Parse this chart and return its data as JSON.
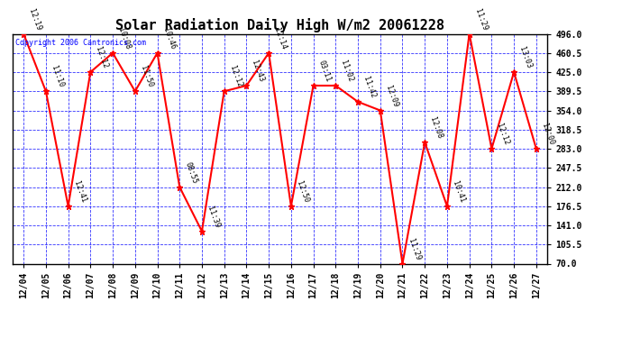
{
  "title": "Solar Radiation Daily High W/m2 20061228",
  "copyright": "Copyright 2006 Cantronics.com",
  "dates": [
    "12/04",
    "12/05",
    "12/06",
    "12/07",
    "12/08",
    "12/09",
    "12/10",
    "12/11",
    "12/12",
    "12/13",
    "12/14",
    "12/15",
    "12/16",
    "12/17",
    "12/18",
    "12/19",
    "12/20",
    "12/21",
    "12/22",
    "12/23",
    "12/24",
    "12/25",
    "12/26",
    "12/27"
  ],
  "values": [
    496.0,
    389.5,
    176.5,
    425.0,
    460.5,
    389.5,
    460.5,
    212.0,
    130.0,
    389.5,
    400.0,
    460.5,
    176.5,
    400.0,
    400.0,
    370.0,
    354.0,
    70.0,
    295.0,
    176.5,
    496.0,
    283.0,
    425.0,
    283.0
  ],
  "annotations": [
    "12:19",
    "11:10",
    "12:41",
    "12:12",
    "10:08",
    "11:50",
    "10:46",
    "08:55",
    "11:39",
    "12:12",
    "12:43",
    "12:14",
    "12:50",
    "03:11",
    "11:02",
    "11:42",
    "12:09",
    "11:29",
    "12:08",
    "10:41",
    "11:29",
    "12:12",
    "13:03",
    "12:00"
  ],
  "ylim": [
    70.0,
    496.0
  ],
  "yticks": [
    70.0,
    105.5,
    141.0,
    176.5,
    212.0,
    247.5,
    283.0,
    318.5,
    354.0,
    389.5,
    425.0,
    460.5,
    496.0
  ],
  "line_color": "red",
  "marker_color": "red",
  "bg_color": "white",
  "grid_color": "blue",
  "title_fontsize": 11,
  "annotation_fontsize": 6,
  "copyright_fontsize": 6,
  "tick_fontsize": 7
}
